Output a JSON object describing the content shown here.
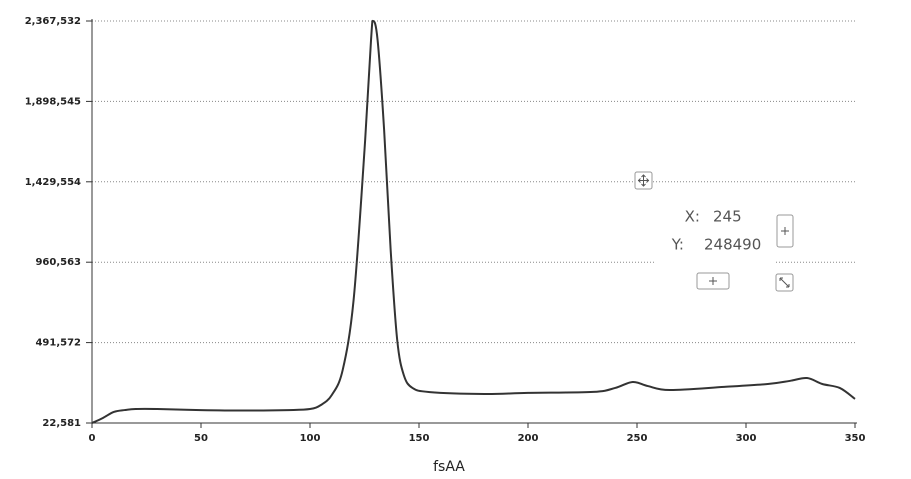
{
  "chart_data": {
    "type": "line",
    "x_label": "fsAA",
    "x": [
      0,
      5,
      10,
      15,
      20,
      30,
      50,
      70,
      90,
      100,
      105,
      110,
      115,
      120,
      125,
      128,
      129,
      131,
      134,
      137,
      140,
      143,
      147,
      155,
      180,
      200,
      230,
      240,
      248,
      255,
      265,
      290,
      310,
      320,
      328,
      335,
      343,
      350
    ],
    "series": [
      {
        "color": "#333333",
        "values": [
          22581,
          52000,
          87000,
          98000,
          104000,
          104000,
          98000,
          95500,
          98000,
          104000,
          127500,
          186000,
          332000,
          740000,
          1615000,
          2257000,
          2367532,
          2257000,
          1732000,
          1032000,
          507000,
          303000,
          227000,
          203000,
          192000,
          198000,
          204000,
          227000,
          262000,
          238000,
          215000,
          233000,
          250000,
          268000,
          285000,
          250000,
          227000,
          163000
        ]
      }
    ],
    "xlim": [
      0,
      350
    ],
    "xticks": [
      0,
      50,
      100,
      150,
      200,
      250,
      300,
      350
    ],
    "ylim": [
      22581,
      2367532
    ],
    "yticks": [
      {
        "value": 22581,
        "label": "22,581"
      },
      {
        "value": 491572,
        "label": "491,572"
      },
      {
        "value": 960563,
        "label": "960,563"
      },
      {
        "value": 1429554,
        "label": "1,429,554"
      },
      {
        "value": 1898545,
        "label": "1,898,545"
      },
      {
        "value": 2367532,
        "label": "2,367,532"
      }
    ],
    "grid": true
  },
  "tooltip": {
    "x_label": "X:",
    "x_value": 245,
    "y_label": "Y:",
    "y_value": 248490
  }
}
